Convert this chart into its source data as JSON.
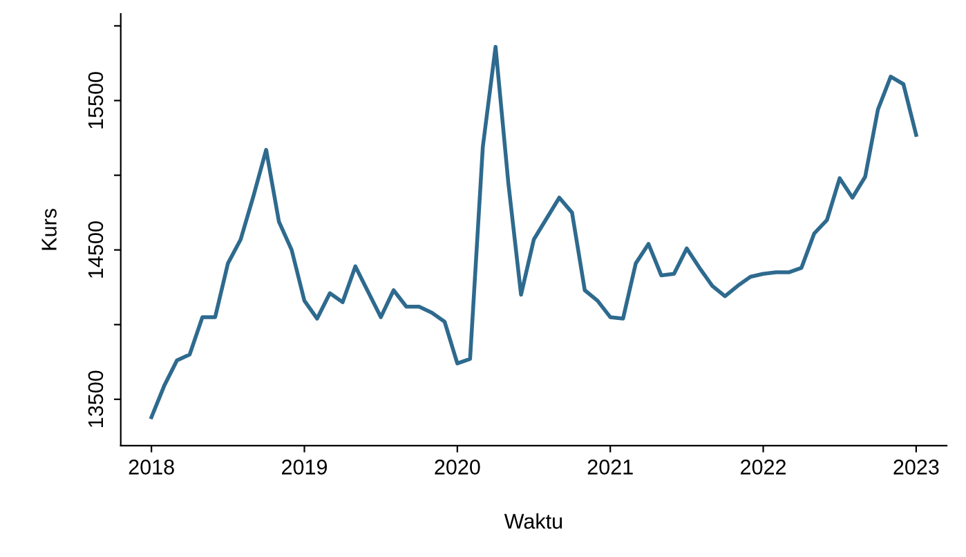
{
  "chart_data": {
    "type": "line",
    "xlabel": "Waktu",
    "ylabel": "Kurs",
    "x": [
      "2018-01",
      "2018-02",
      "2018-03",
      "2018-04",
      "2018-05",
      "2018-06",
      "2018-07",
      "2018-08",
      "2018-09",
      "2018-10",
      "2018-11",
      "2018-12",
      "2019-01",
      "2019-02",
      "2019-03",
      "2019-04",
      "2019-05",
      "2019-06",
      "2019-07",
      "2019-08",
      "2019-09",
      "2019-10",
      "2019-11",
      "2019-12",
      "2020-01",
      "2020-02",
      "2020-03",
      "2020-04",
      "2020-05",
      "2020-06",
      "2020-07",
      "2020-08",
      "2020-09",
      "2020-10",
      "2020-11",
      "2020-12",
      "2021-01",
      "2021-02",
      "2021-03",
      "2021-04",
      "2021-05",
      "2021-06",
      "2021-07",
      "2021-08",
      "2021-09",
      "2021-10",
      "2021-11",
      "2021-12",
      "2022-01",
      "2022-02",
      "2022-03",
      "2022-04",
      "2022-05",
      "2022-06",
      "2022-07",
      "2022-08",
      "2022-09",
      "2022-10",
      "2022-11",
      "2022-12",
      "2023-01"
    ],
    "series": [
      {
        "color": "#2e6a8e",
        "values": [
          13380,
          13590,
          13760,
          13800,
          14050,
          14050,
          14410,
          14570,
          14860,
          15170,
          14690,
          14500,
          14160,
          14040,
          14210,
          14150,
          14390,
          14220,
          14050,
          14230,
          14120,
          14120,
          14080,
          14020,
          13740,
          13770,
          15190,
          15860,
          14950,
          14200,
          14570,
          14710,
          14850,
          14750,
          14230,
          14160,
          14050,
          14040,
          14410,
          14540,
          14330,
          14340,
          14510,
          14380,
          14260,
          14190,
          14260,
          14320,
          14340,
          14350,
          14350,
          14380,
          14610,
          14700,
          14980,
          14850,
          14990,
          15440,
          15660,
          15610,
          15270
        ]
      }
    ],
    "xlim": [
      "2017-10-19",
      "2023-03-13"
    ],
    "xticks": [
      "2018",
      "2019",
      "2020",
      "2021",
      "2022",
      "2023"
    ],
    "ylim": [
      13190,
      16080
    ],
    "yticks": [
      13500,
      {
        "value": 14000,
        "label": null
      },
      14500,
      {
        "value": 15000,
        "label": null
      },
      15500,
      {
        "value": 16000,
        "label": null
      }
    ],
    "grid": false,
    "legend": false,
    "marker": "none",
    "line_style": "solid"
  }
}
